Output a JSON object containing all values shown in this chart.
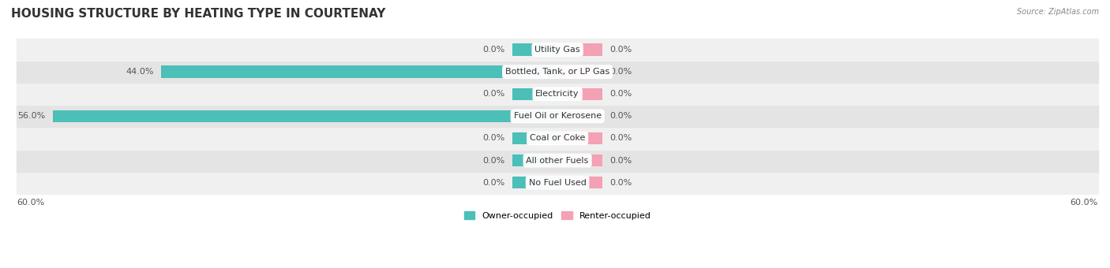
{
  "title": "HOUSING STRUCTURE BY HEATING TYPE IN COURTENAY",
  "source": "Source: ZipAtlas.com",
  "categories": [
    "Utility Gas",
    "Bottled, Tank, or LP Gas",
    "Electricity",
    "Fuel Oil or Kerosene",
    "Coal or Coke",
    "All other Fuels",
    "No Fuel Used"
  ],
  "owner_values": [
    0.0,
    44.0,
    0.0,
    56.0,
    0.0,
    0.0,
    0.0
  ],
  "renter_values": [
    0.0,
    0.0,
    0.0,
    0.0,
    0.0,
    0.0,
    0.0
  ],
  "owner_color": "#4BBFB8",
  "renter_color": "#F4A0B5",
  "row_bg_colors": [
    "#F0F0F0",
    "#E4E4E4"
  ],
  "axis_max": 60.0,
  "stub_size": 5.0,
  "title_fontsize": 11,
  "label_fontsize": 8,
  "cat_fontsize": 8,
  "background_color": "#FFFFFF",
  "bar_height": 0.55,
  "owner_label": "Owner-occupied",
  "renter_label": "Renter-occupied",
  "value_color": "#555555",
  "cat_label_color": "#333333"
}
